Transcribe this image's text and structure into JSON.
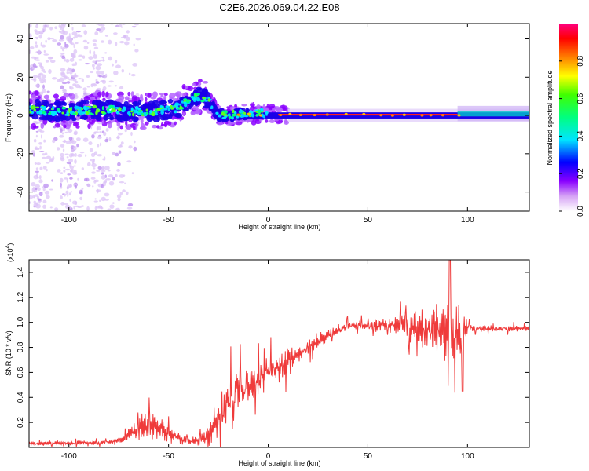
{
  "title": "C2E6.2026.069.04.22.E08",
  "chart_data": [
    {
      "type": "heatmap",
      "name": "spectrogram",
      "xlabel": "Height of straight line (km)",
      "ylabel": "Frequency (Hz)",
      "xlim": [
        -120,
        131
      ],
      "ylim": [
        -50,
        48
      ],
      "xticks": [
        -100,
        -50,
        0,
        50,
        100
      ],
      "xtick_labels": [
        "-100",
        "-50",
        "0",
        "50",
        "100"
      ],
      "yticks": [
        -40,
        -20,
        0,
        20,
        40
      ],
      "ytick_labels": [
        "-40",
        "-20",
        "0",
        "20",
        "40"
      ],
      "colorbar": {
        "label": "Normalized spectral amplitude",
        "range": [
          0,
          1
        ],
        "ticks": [
          0.0,
          0.2,
          0.4,
          0.6,
          0.8
        ],
        "tick_labels": [
          "0.0",
          "0.2",
          "0.4",
          "0.6",
          "0.8"
        ]
      },
      "ridge": {
        "x": [
          -120,
          -100,
          -80,
          -60,
          -50,
          -45,
          -40,
          -35,
          -30,
          -25,
          -20,
          -10,
          0,
          10,
          50,
          90,
          100,
          131
        ],
        "freq": [
          3,
          2,
          3,
          2,
          3,
          4,
          8,
          10,
          8,
          0,
          0,
          1,
          1,
          0,
          0,
          0,
          0,
          1
        ]
      }
    },
    {
      "type": "line",
      "name": "snr",
      "xlabel": "Height of straight line (km)",
      "ylabel": "SNR (10 * v/v)",
      "scale_note": "(x10",
      "scale_exp": "4",
      "xlim": [
        -120,
        131
      ],
      "ylim": [
        0,
        1.5
      ],
      "xticks": [
        -100,
        -50,
        0,
        50,
        100
      ],
      "xtick_labels": [
        "-100",
        "-50",
        "0",
        "50",
        "100"
      ],
      "yticks": [
        0.2,
        0.4,
        0.6,
        0.8,
        1.0,
        1.2,
        1.4
      ],
      "ytick_labels": [
        "0.2",
        "0.4",
        "0.6",
        "0.8",
        "1.0",
        "1.2",
        "1.4"
      ],
      "series": [
        {
          "name": "SNR",
          "color": "#ef3b3b",
          "envelope": {
            "x": [
              -120,
              -80,
              -75,
              -70,
              -65,
              -60,
              -55,
              -50,
              -45,
              -40,
              -35,
              -30,
              -25,
              -20,
              -15,
              -10,
              -5,
              0,
              5,
              10,
              15,
              20,
              25,
              30,
              35,
              40,
              45,
              50,
              60,
              70,
              80,
              85,
              90,
              95,
              98,
              100,
              110,
              120,
              131
            ],
            "base": [
              0.03,
              0.04,
              0.06,
              0.1,
              0.14,
              0.16,
              0.15,
              0.12,
              0.08,
              0.05,
              0.05,
              0.1,
              0.22,
              0.35,
              0.45,
              0.5,
              0.55,
              0.6,
              0.65,
              0.7,
              0.75,
              0.8,
              0.85,
              0.9,
              0.93,
              0.97,
              0.98,
              0.97,
              0.98,
              0.97,
              0.95,
              0.95,
              0.93,
              0.9,
              0.95,
              0.96,
              0.95,
              0.95,
              0.95
            ],
            "spread": [
              0.03,
              0.03,
              0.04,
              0.1,
              0.18,
              0.25,
              0.2,
              0.14,
              0.08,
              0.05,
              0.06,
              0.15,
              0.3,
              0.4,
              0.3,
              0.25,
              0.22,
              0.2,
              0.2,
              0.2,
              0.15,
              0.12,
              0.1,
              0.08,
              0.06,
              0.06,
              0.06,
              0.06,
              0.1,
              0.2,
              0.3,
              0.35,
              0.45,
              0.45,
              0.3,
              0.05,
              0.04,
              0.04,
              0.04
            ]
          }
        }
      ]
    }
  ]
}
